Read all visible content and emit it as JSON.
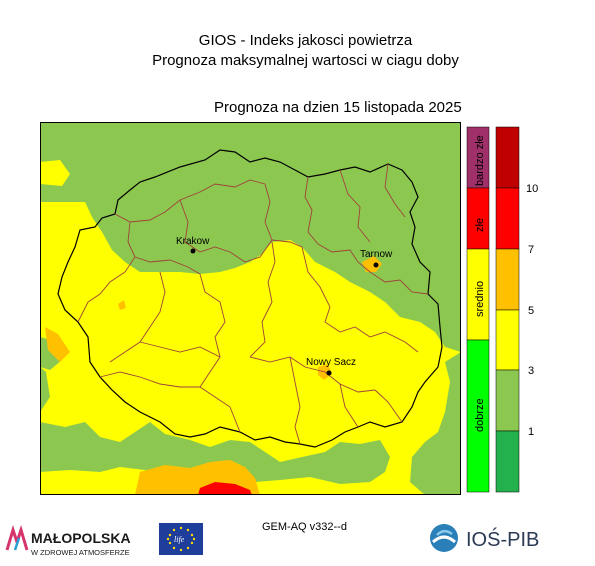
{
  "header": {
    "title_line1": "GIOS - Indeks jakosci powietrza",
    "title_line2": "Prognoza maksymalnej wartosci w ciagu doby",
    "forecast_date": "Prognoza na dzien  15 listopada 2025"
  },
  "map": {
    "cities": [
      {
        "name": "Krakow"
      },
      {
        "name": "Tarnow"
      },
      {
        "name": "Nowy Sacz"
      }
    ],
    "colors": {
      "green_light": "#8cc850",
      "yellow": "#ffff00",
      "orange": "#ffc000",
      "red": "#ff0000",
      "boundary_county": "#a0413c",
      "boundary_province": "#000000"
    }
  },
  "legend_categories": {
    "labels": [
      "bardzo złe",
      "złe",
      "srednio",
      "dobrze"
    ],
    "colors": [
      "#a0306a",
      "#ff0000",
      "#ffff00",
      "#00ff00"
    ]
  },
  "legend_scale": {
    "tick_labels": [
      "10",
      "7",
      "5",
      "3",
      "1"
    ],
    "bands": [
      "#c00000",
      "#ff0000",
      "#ffc000",
      "#ffff00",
      "#8cc850",
      "#22b14c"
    ]
  },
  "footer": {
    "model_label": "GEM-AQ v332--d",
    "malopolska_name": "MAŁOPOLSKA",
    "malopolska_tagline": "W ZDROWEJ ATMOSFERZE",
    "eu_life_text": "life",
    "ios_name": "IOŚ-PIB"
  }
}
